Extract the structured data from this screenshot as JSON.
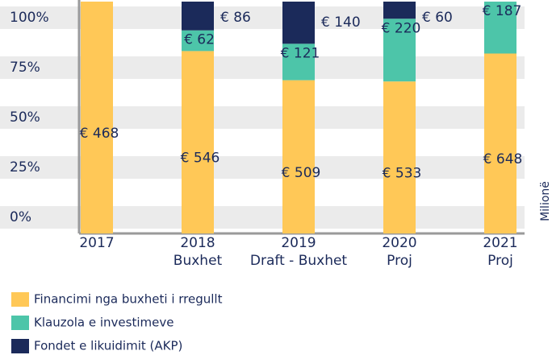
{
  "chart_data": {
    "type": "bar",
    "stack": "percent",
    "categories": [
      [
        "2017"
      ],
      [
        "2018",
        "Buxhet"
      ],
      [
        "2019",
        "Draft - Buxhet"
      ],
      [
        "2020",
        "Proj"
      ],
      [
        "2021",
        "Proj"
      ]
    ],
    "series": [
      {
        "name": "Financimi nga buxheti i rregullt",
        "color": "#ffc857",
        "values": [
          468,
          546,
          509,
          533,
          648
        ],
        "value_labels": [
          "€ 468",
          "€ 546",
          "€ 509",
          "€ 533",
          "€ 648"
        ]
      },
      {
        "name": "Klauzola e investimeve",
        "color": "#4dc5a9",
        "values": [
          null,
          62,
          121,
          220,
          187
        ],
        "value_labels": [
          null,
          "€ 62",
          "€ 121",
          "€ 220",
          "€ 187"
        ]
      },
      {
        "name": "Fondet e likuidimit (AKP)",
        "color": "#1b2a5a",
        "values": [
          null,
          86,
          140,
          60,
          null
        ],
        "value_labels": [
          null,
          "€ 86",
          "€ 140",
          "€ 60",
          null
        ]
      }
    ],
    "ylim": [
      0,
      100
    ],
    "yticks": [
      {
        "value": 0,
        "label": "0%"
      },
      {
        "value": 25,
        "label": "25%"
      },
      {
        "value": 50,
        "label": "50%"
      },
      {
        "value": 75,
        "label": "75%"
      },
      {
        "value": 100,
        "label": "100%"
      }
    ],
    "y2_label": "Milionë",
    "grid": true
  }
}
